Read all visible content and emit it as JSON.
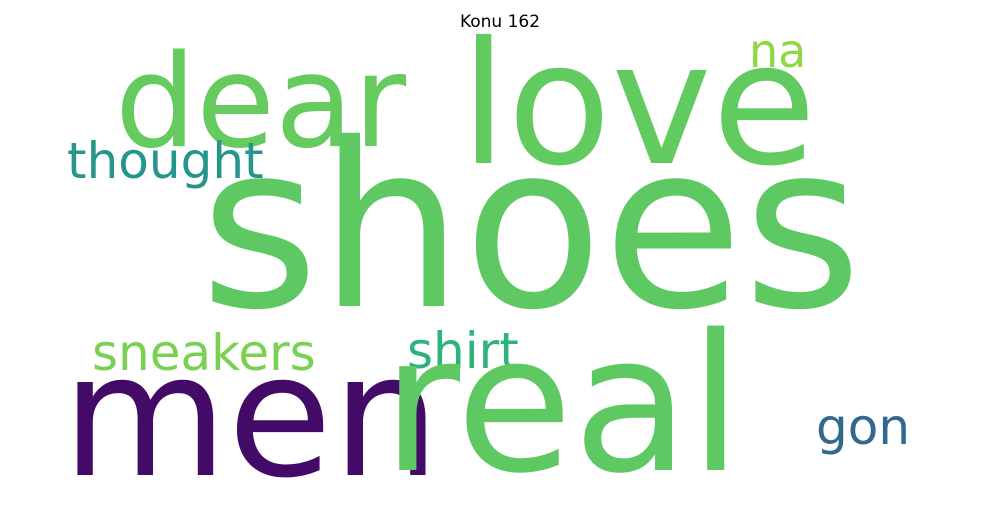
{
  "title": "Konu 162",
  "words": [
    {
      "id": "shoes",
      "text": "shoes",
      "color": "#5ec962"
    },
    {
      "id": "love",
      "text": "love",
      "color": "#62cb5f"
    },
    {
      "id": "dear",
      "text": "dear",
      "color": "#65cb5e"
    },
    {
      "id": "men",
      "text": "men",
      "color": "#440a68"
    },
    {
      "id": "real",
      "text": "real",
      "color": "#5ec962"
    },
    {
      "id": "thought",
      "text": "thought",
      "color": "#26968b"
    },
    {
      "id": "na",
      "text": "na",
      "color": "#8fd744"
    },
    {
      "id": "sneakers",
      "text": "sneakers",
      "color": "#7ad151"
    },
    {
      "id": "shirt",
      "text": "shirt",
      "color": "#2eb37c"
    },
    {
      "id": "gon",
      "text": "gon",
      "color": "#31688e"
    }
  ]
}
